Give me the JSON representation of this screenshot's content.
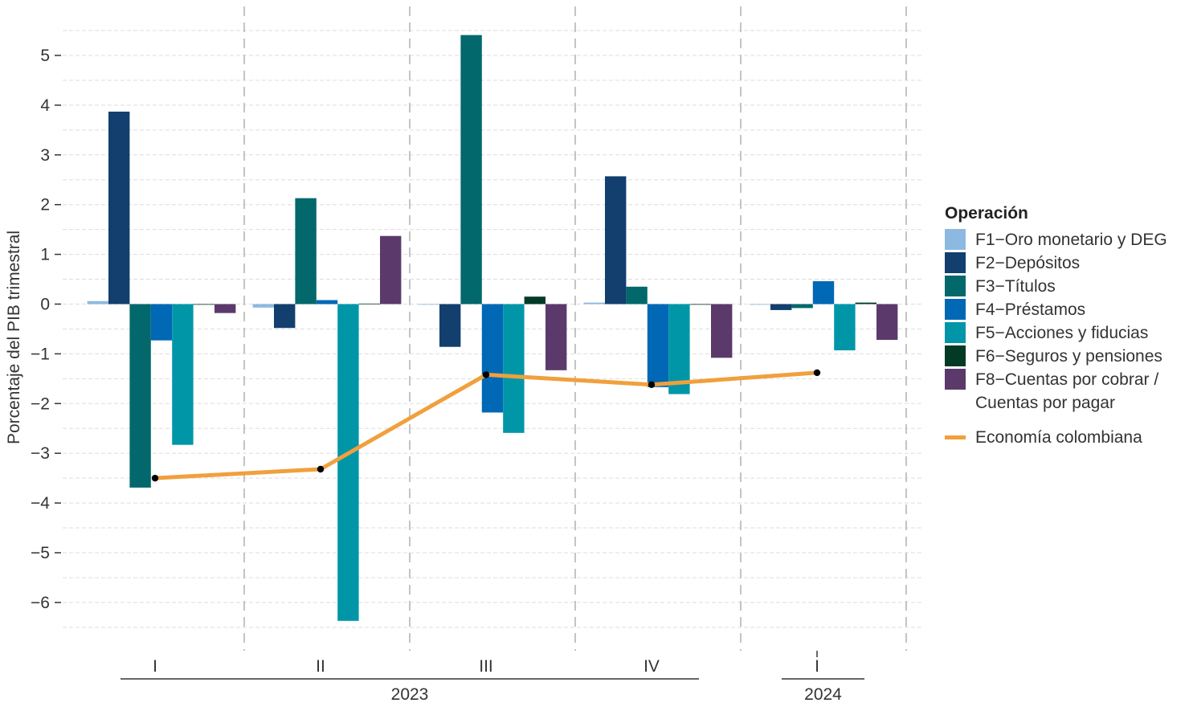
{
  "chart_data": {
    "type": "bar",
    "ylabel": "Porcentaje del PIB trimestral",
    "ylim": [
      -6.6,
      5.6
    ],
    "yticks": [
      -6,
      -5,
      -4,
      -3,
      -2,
      -1,
      0,
      1,
      2,
      3,
      4,
      5
    ],
    "ytick_labels": [
      "−6",
      "−5",
      "−4",
      "−3",
      "−2",
      "−1",
      "0",
      "1",
      "2",
      "3",
      "4",
      "5"
    ],
    "grid": true,
    "legend_placement": "right",
    "legend_title": "Operación",
    "categories": [
      "I",
      "II",
      "III",
      "IV",
      "I"
    ],
    "year_groups": [
      {
        "label": "2023",
        "from": 0,
        "to": 3
      },
      {
        "label": "2024",
        "from": 4,
        "to": 4
      }
    ],
    "series": [
      {
        "name": "F1−Oro monetario y DEG",
        "color": "#8DB9E0",
        "values": [
          0.06,
          -0.07,
          -0.01,
          0.03,
          -0.01
        ]
      },
      {
        "name": "F2−Depósitos",
        "color": "#123F6E",
        "values": [
          3.87,
          -0.48,
          -0.86,
          2.57,
          -0.12
        ]
      },
      {
        "name": "F3−Títulos",
        "color": "#02686B",
        "values": [
          -3.69,
          2.13,
          5.41,
          0.35,
          -0.08
        ]
      },
      {
        "name": "F4−Préstamos",
        "color": "#0068B5",
        "values": [
          -0.73,
          0.08,
          -2.18,
          -1.67,
          0.46
        ]
      },
      {
        "name": "F5−Acciones y fiducias",
        "color": "#0096A8",
        "values": [
          -2.83,
          -6.37,
          -2.59,
          -1.81,
          -0.93
        ]
      },
      {
        "name": "F6−Seguros y pensiones",
        "color": "#033A26",
        "values": [
          0.0,
          0.01,
          0.15,
          -0.01,
          0.03
        ]
      },
      {
        "name": "F8−Cuentas por cobrar / Cuentas por pagar",
        "name_lines": [
          "F8−Cuentas por cobrar /",
          "Cuentas por pagar"
        ],
        "color": "#5B3A6B",
        "values": [
          -0.18,
          1.37,
          -1.33,
          -1.08,
          -0.72
        ]
      }
    ],
    "line_series": {
      "name": "Economía colombiana",
      "color": "#F0A03C",
      "values": [
        -3.5,
        -3.32,
        -1.42,
        -1.62,
        -1.38
      ]
    }
  }
}
